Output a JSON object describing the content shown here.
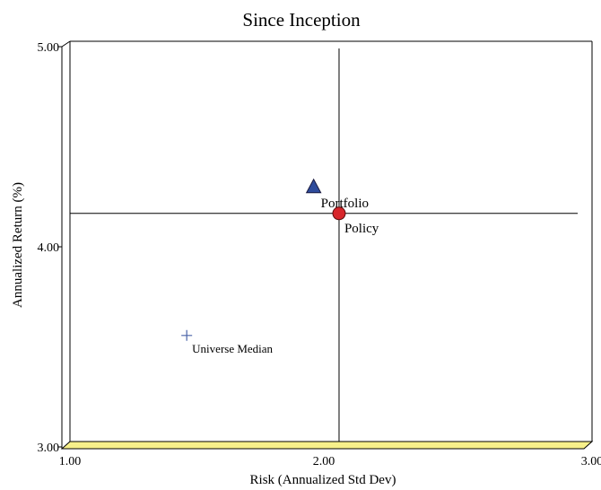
{
  "chart_data": {
    "type": "scatter",
    "title": "Since Inception",
    "xlabel": "Risk (Annualized Std Dev)",
    "ylabel": "Annualized Return (%)",
    "xlim": [
      1.0,
      3.0
    ],
    "ylim": [
      3.0,
      5.0
    ],
    "x_ticks": [
      "1.00",
      "2.00",
      "3.00"
    ],
    "y_ticks": [
      "3.00",
      "4.00",
      "5.00"
    ],
    "grid": false,
    "crosshair": {
      "x": 2.06,
      "y": 4.14
    },
    "points": [
      {
        "label": "Portfolio",
        "x": 1.96,
        "y": 4.27,
        "marker": "triangle",
        "color": "#2e4b9b"
      },
      {
        "label": "Policy",
        "x": 2.06,
        "y": 4.14,
        "marker": "circle",
        "color": "#d7262b"
      },
      {
        "label": "Universe Median",
        "x": 1.46,
        "y": 3.53,
        "marker": "plus",
        "color": "#4a64a8"
      }
    ],
    "floor_color": "#f7f08a"
  }
}
